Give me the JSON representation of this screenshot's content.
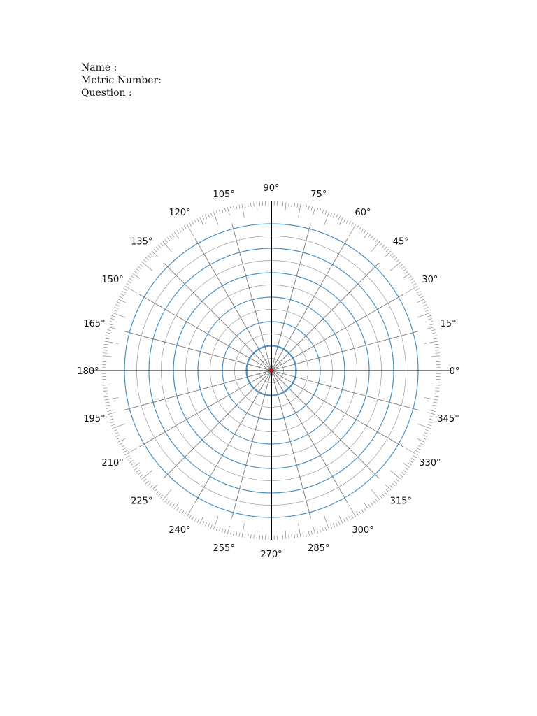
{
  "header": {
    "name_label": "Name :",
    "metric_label": "Metric Number:",
    "question_label": "Question :"
  },
  "polar_grid": {
    "colors": {
      "major_ring": "#4a90c2",
      "minor_ring": "#9a9a9a",
      "spoke": "#777777",
      "axis": "#000000",
      "center_dot": "#cc0000",
      "tick": "#888888"
    },
    "angle_labels": [
      "0°",
      "15°",
      "30°",
      "45°",
      "60°",
      "75°",
      "90°",
      "105°",
      "120°",
      "135°",
      "150°",
      "165°",
      "180°",
      "195°",
      "210°",
      "225°",
      "240°",
      "255°",
      "270°",
      "285°",
      "300°",
      "315°",
      "330°",
      "345°"
    ]
  }
}
